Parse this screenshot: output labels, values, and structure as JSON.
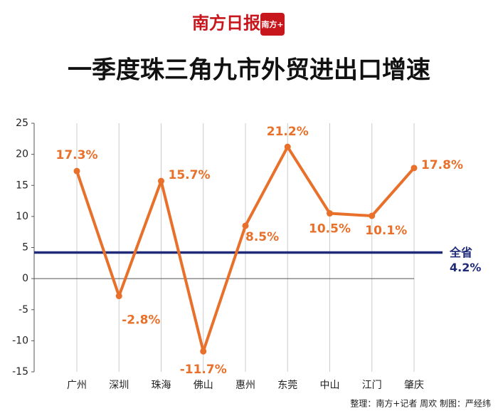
{
  "chart_data": {
    "type": "line",
    "logo": "南方日报",
    "logo_icon": "南方+",
    "title": "一季度珠三角九市外贸进出口增速",
    "categories": [
      "广州",
      "深圳",
      "珠海",
      "佛山",
      "惠州",
      "东莞",
      "中山",
      "江门",
      "肇庆"
    ],
    "series": [
      {
        "color": "#e8702a",
        "values": [
          17.3,
          -2.8,
          15.7,
          -11.7,
          8.5,
          21.2,
          10.5,
          10.1,
          17.8
        ],
        "value_labels": [
          "17.3%",
          "-2.8%",
          "15.7%",
          "-11.7%",
          "8.5%",
          "21.2%",
          "10.5%",
          "10.1%",
          "17.8%"
        ]
      }
    ],
    "reference": {
      "name": "全省",
      "value": 4.2,
      "label": "4.2%",
      "color": "#1f2a78"
    },
    "ylim": [
      -15,
      25
    ],
    "yticks": [
      -15,
      -10,
      -5,
      0,
      5,
      10,
      15,
      20,
      25
    ],
    "grid": true,
    "credit": "整理：南方+记者 周欢  制图：严经纬"
  }
}
